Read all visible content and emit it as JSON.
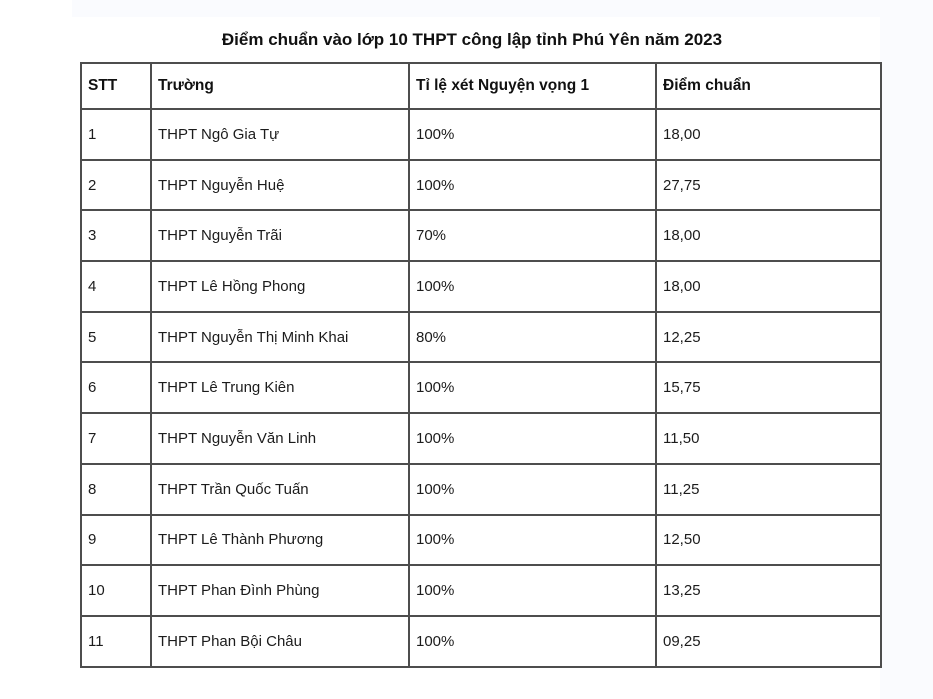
{
  "page": {
    "title": "Điểm chuẩn vào lớp 10 THPT công lập tỉnh Phú Yên năm 2023"
  },
  "colors": {
    "page_background": "#fafbfe",
    "card_background": "#ffffff",
    "table_border": "#4d4d4d",
    "text": "#1c1c1c"
  },
  "table": {
    "headers": [
      "STT",
      "Trường",
      "Tỉ lệ xét Nguyện vọng 1",
      "Điểm chuẩn"
    ],
    "rows": [
      [
        "1",
        "THPT Ngô Gia Tự",
        "100%",
        "18,00"
      ],
      [
        "2",
        "THPT Nguyễn Huệ",
        "100%",
        "27,75"
      ],
      [
        "3",
        "THPT Nguyễn Trãi",
        "70%",
        "18,00"
      ],
      [
        "4",
        "THPT Lê Hồng Phong",
        "100%",
        "18,00"
      ],
      [
        "5",
        "THPT Nguyễn Thị Minh Khai",
        "80%",
        "12,25"
      ],
      [
        "6",
        "THPT Lê Trung Kiên",
        "100%",
        "15,75"
      ],
      [
        "7",
        "THPT Nguyễn Văn Linh",
        "100%",
        "11,50"
      ],
      [
        "8",
        "THPT Trần Quốc Tuấn",
        "100%",
        "11,25"
      ],
      [
        "9",
        "THPT Lê Thành Phương",
        "100%",
        "12,50"
      ],
      [
        "10",
        "THPT Phan Đình Phùng",
        "100%",
        "13,25"
      ],
      [
        "11",
        "THPT Phan Bội Châu",
        "100%",
        "09,25"
      ]
    ]
  }
}
